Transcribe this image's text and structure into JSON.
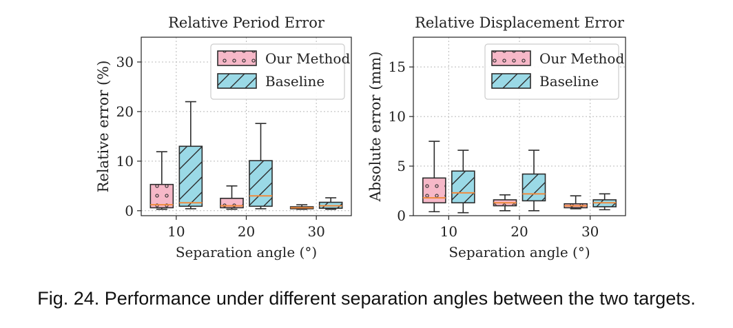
{
  "caption": "Fig. 24.  Performance under different separation angles between the two targets.",
  "colors": {
    "our_fill": "#f6b8c8",
    "baseline_fill": "#9ad9e6",
    "edge": "#2b2b2b",
    "median": "#f08a3c",
    "grid": "#b8b8b8"
  },
  "chart_data": [
    {
      "type": "box",
      "title": "Relative Period Error",
      "xlabel": "Separation angle (°)",
      "ylabel": "Relative error (%)",
      "categories": [
        "10",
        "20",
        "30"
      ],
      "ylim": [
        -1,
        35
      ],
      "yticks": [
        0,
        10,
        20,
        30
      ],
      "grid": true,
      "legend_position": "top-right",
      "series": [
        {
          "name": "Our Method",
          "hatch": "dots",
          "boxes": [
            {
              "whislo": 0.3,
              "q1": 0.6,
              "med": 1.2,
              "q3": 5.3,
              "whishi": 11.9,
              "fliers": []
            },
            {
              "whislo": 0.3,
              "q1": 0.6,
              "med": 1.0,
              "q3": 2.5,
              "whishi": 5.0,
              "fliers": []
            },
            {
              "whislo": 0.3,
              "q1": 0.4,
              "med": 0.6,
              "q3": 0.8,
              "whishi": 1.2,
              "fliers": []
            }
          ]
        },
        {
          "name": "Baseline",
          "hatch": "diagonal",
          "boxes": [
            {
              "whislo": 0.4,
              "q1": 0.9,
              "med": 1.6,
              "q3": 13.0,
              "whishi": 22.0,
              "fliers": []
            },
            {
              "whislo": 0.4,
              "q1": 0.9,
              "med": 3.0,
              "q3": 10.1,
              "whishi": 17.6,
              "fliers": []
            },
            {
              "whislo": 0.3,
              "q1": 0.5,
              "med": 1.0,
              "q3": 1.7,
              "whishi": 2.6,
              "fliers": []
            }
          ]
        }
      ]
    },
    {
      "type": "box",
      "title": "Relative Displacement Error",
      "xlabel": "Separation angle (°)",
      "ylabel": "Absolute error (mm)",
      "categories": [
        "10",
        "20",
        "30"
      ],
      "ylim": [
        0,
        18
      ],
      "yticks": [
        0,
        5,
        10,
        15
      ],
      "grid": true,
      "legend_position": "top-right",
      "series": [
        {
          "name": "Our Method",
          "hatch": "dots",
          "boxes": [
            {
              "whislo": 0.4,
              "q1": 1.3,
              "med": 1.8,
              "q3": 3.8,
              "whishi": 7.5,
              "fliers": []
            },
            {
              "whislo": 0.5,
              "q1": 1.0,
              "med": 1.3,
              "q3": 1.6,
              "whishi": 2.1,
              "fliers": []
            },
            {
              "whislo": 0.7,
              "q1": 0.8,
              "med": 1.0,
              "q3": 1.2,
              "whishi": 2.0,
              "fliers": []
            }
          ]
        },
        {
          "name": "Baseline",
          "hatch": "diagonal",
          "boxes": [
            {
              "whislo": 0.3,
              "q1": 1.3,
              "med": 2.3,
              "q3": 4.5,
              "whishi": 6.6,
              "fliers": []
            },
            {
              "whislo": 0.5,
              "q1": 1.5,
              "med": 2.2,
              "q3": 4.2,
              "whishi": 6.6,
              "fliers": []
            },
            {
              "whislo": 0.6,
              "q1": 0.9,
              "med": 1.3,
              "q3": 1.6,
              "whishi": 2.2,
              "fliers": []
            }
          ]
        }
      ]
    }
  ]
}
